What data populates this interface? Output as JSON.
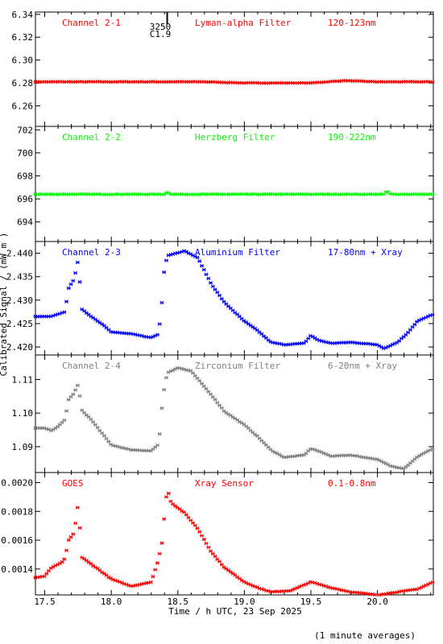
{
  "x_axis": {
    "ticks": [
      17.5,
      18.0,
      18.5,
      19.0,
      19.5,
      20.0
    ],
    "tick_labels": [
      "17.5",
      "18.0",
      "18.5",
      "19.0",
      "19.5",
      "20.0"
    ],
    "xlim": [
      17.43,
      20.42
    ],
    "label": "Time / h UTC, 23 Sep 2025"
  },
  "y_axis_label": "Calibrated Signal / (mW m  )",
  "averaging_note": "(1 minute averages)",
  "flare_marker": {
    "time": 18.42,
    "label_1": "3250",
    "label_2": "C1.9"
  },
  "colors": {
    "red": "#ff0000",
    "green": "#00ff00",
    "blue": "#0000ff",
    "grey": "#808080",
    "black": "#000000"
  },
  "chart_data": [
    {
      "type": "scatter",
      "channel": "Channel 2-1",
      "filter": "Lyman-alpha Filter",
      "band": "120-123nm",
      "color": "#ff0000",
      "ylim": [
        6.242,
        6.342
      ],
      "yticks": [
        6.26,
        6.28,
        6.3,
        6.32,
        6.34
      ],
      "ytick_labels": [
        "6.26",
        "6.28",
        "6.30",
        "6.32",
        "6.34"
      ],
      "points": [
        [
          17.43,
          6.281
        ],
        [
          17.75,
          6.281
        ],
        [
          18.0,
          6.281
        ],
        [
          18.4,
          6.281
        ],
        [
          18.7,
          6.281
        ],
        [
          19.0,
          6.28
        ],
        [
          19.5,
          6.28
        ],
        [
          19.75,
          6.282
        ],
        [
          20.0,
          6.281
        ],
        [
          20.42,
          6.281
        ]
      ]
    },
    {
      "type": "scatter",
      "channel": "Channel 2-2",
      "filter": "Herzberg Filter",
      "band": "190-222nm",
      "color": "#00ff00",
      "ylim": [
        692.3,
        702.3
      ],
      "yticks": [
        694,
        696,
        698,
        700,
        702
      ],
      "ytick_labels": [
        "694",
        "696",
        "698",
        "700",
        "702"
      ],
      "points": [
        [
          17.43,
          696.4
        ],
        [
          18.0,
          696.4
        ],
        [
          18.4,
          696.4
        ],
        [
          18.42,
          696.6
        ],
        [
          18.45,
          696.4
        ],
        [
          19.0,
          696.4
        ],
        [
          19.5,
          696.4
        ],
        [
          20.05,
          696.4
        ],
        [
          20.07,
          696.7
        ],
        [
          20.1,
          696.4
        ],
        [
          20.42,
          696.4
        ]
      ]
    },
    {
      "type": "scatter",
      "channel": "Channel 2-3",
      "filter": "Aluminium Filter",
      "band": "17-80nm + Xray",
      "color": "#0000ff",
      "ylim": [
        2.4183,
        2.4425
      ],
      "yticks": [
        2.42,
        2.425,
        2.43,
        2.435,
        2.44
      ],
      "ytick_labels": [
        "2.420",
        "2.425",
        "2.430",
        "2.435",
        "2.440"
      ],
      "points": [
        [
          17.43,
          2.4265
        ],
        [
          17.55,
          2.4265
        ],
        [
          17.6,
          2.427
        ],
        [
          17.65,
          2.4275
        ],
        [
          17.68,
          2.4325
        ],
        [
          17.72,
          2.4345
        ],
        [
          17.75,
          2.4385
        ],
        [
          17.78,
          2.428
        ],
        [
          17.85,
          2.4265
        ],
        [
          17.95,
          2.4245
        ],
        [
          18.0,
          2.4232
        ],
        [
          18.15,
          2.4228
        ],
        [
          18.3,
          2.422
        ],
        [
          18.35,
          2.4227
        ],
        [
          18.37,
          2.426
        ],
        [
          18.38,
          2.4295
        ],
        [
          18.39,
          2.435
        ],
        [
          18.42,
          2.4395
        ],
        [
          18.55,
          2.4405
        ],
        [
          18.65,
          2.439
        ],
        [
          18.75,
          2.4335
        ],
        [
          18.85,
          2.4295
        ],
        [
          19.0,
          2.4255
        ],
        [
          19.1,
          2.4235
        ],
        [
          19.2,
          2.421
        ],
        [
          19.3,
          2.4205
        ],
        [
          19.45,
          2.4208
        ],
        [
          19.5,
          2.4225
        ],
        [
          19.55,
          2.4215
        ],
        [
          19.65,
          2.4208
        ],
        [
          19.8,
          2.421
        ],
        [
          20.0,
          2.4205
        ],
        [
          20.05,
          2.4197
        ],
        [
          20.15,
          2.421
        ],
        [
          20.22,
          2.4228
        ],
        [
          20.3,
          2.4255
        ],
        [
          20.42,
          2.427
        ]
      ]
    },
    {
      "type": "scatter",
      "channel": "Channel 2-4",
      "filter": "Zirconium Filter",
      "band": "6-20nm + Xray",
      "color": "#808080",
      "ylim": [
        1.0823,
        1.1173
      ],
      "yticks": [
        1.09,
        1.1,
        1.11
      ],
      "ytick_labels": [
        "1.09",
        "1.10",
        "1.11"
      ],
      "points": [
        [
          17.43,
          1.0955
        ],
        [
          17.5,
          1.0955
        ],
        [
          17.55,
          1.0948
        ],
        [
          17.6,
          1.096
        ],
        [
          17.65,
          1.098
        ],
        [
          17.68,
          1.104
        ],
        [
          17.72,
          1.106
        ],
        [
          17.75,
          1.1085
        ],
        [
          17.78,
          1.1008
        ],
        [
          17.85,
          1.098
        ],
        [
          17.95,
          1.093
        ],
        [
          18.0,
          1.0905
        ],
        [
          18.15,
          1.089
        ],
        [
          18.3,
          1.0888
        ],
        [
          18.35,
          1.0905
        ],
        [
          18.37,
          1.0955
        ],
        [
          18.38,
          1.1015
        ],
        [
          18.39,
          1.1055
        ],
        [
          18.42,
          1.112
        ],
        [
          18.5,
          1.1135
        ],
        [
          18.6,
          1.1125
        ],
        [
          18.75,
          1.1055
        ],
        [
          18.85,
          1.1005
        ],
        [
          19.0,
          1.0965
        ],
        [
          19.1,
          1.093
        ],
        [
          19.2,
          1.089
        ],
        [
          19.3,
          1.0868
        ],
        [
          19.45,
          1.0875
        ],
        [
          19.5,
          1.0895
        ],
        [
          19.55,
          1.0888
        ],
        [
          19.65,
          1.0872
        ],
        [
          19.8,
          1.0875
        ],
        [
          20.0,
          1.0862
        ],
        [
          20.1,
          1.0842
        ],
        [
          20.2,
          1.0835
        ],
        [
          20.3,
          1.087
        ],
        [
          20.42,
          1.0895
        ]
      ]
    },
    {
      "type": "scatter",
      "channel": "GOES",
      "filter": "Xray Sensor",
      "band": "0.1-0.8nm",
      "color": "#ff0000",
      "ylim": [
        0.00122,
        0.00207
      ],
      "yticks": [
        0.0014,
        0.0016,
        0.0018,
        0.002
      ],
      "ytick_labels": [
        "0.0014",
        "0.0016",
        "0.0018",
        "0.0020"
      ],
      "points": [
        [
          17.43,
          0.00134
        ],
        [
          17.5,
          0.00135
        ],
        [
          17.55,
          0.00141
        ],
        [
          17.62,
          0.00144
        ],
        [
          17.65,
          0.00147
        ],
        [
          17.68,
          0.0016
        ],
        [
          17.72,
          0.00165
        ],
        [
          17.75,
          0.00185
        ],
        [
          17.78,
          0.00148
        ],
        [
          17.9,
          0.0014
        ],
        [
          18.0,
          0.00133
        ],
        [
          18.15,
          0.00128
        ],
        [
          18.3,
          0.00131
        ],
        [
          18.35,
          0.00145
        ],
        [
          18.38,
          0.00158
        ],
        [
          18.4,
          0.00178
        ],
        [
          18.42,
          0.00196
        ],
        [
          18.45,
          0.00186
        ],
        [
          18.55,
          0.00179
        ],
        [
          18.65,
          0.00168
        ],
        [
          18.75,
          0.00152
        ],
        [
          18.85,
          0.00141
        ],
        [
          19.0,
          0.00131
        ],
        [
          19.1,
          0.00127
        ],
        [
          19.2,
          0.00124
        ],
        [
          19.35,
          0.00125
        ],
        [
          19.5,
          0.00131
        ],
        [
          19.65,
          0.00127
        ],
        [
          19.8,
          0.00124
        ],
        [
          20.0,
          0.00122
        ],
        [
          20.15,
          0.00124
        ],
        [
          20.3,
          0.00126
        ],
        [
          20.42,
          0.00131
        ]
      ]
    }
  ]
}
